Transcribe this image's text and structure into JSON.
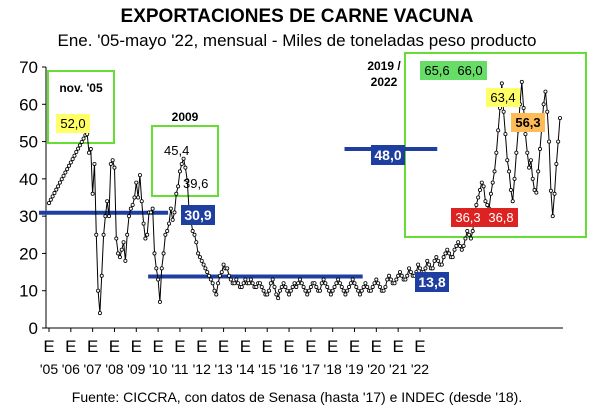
{
  "chart_data": {
    "type": "line",
    "title": "EXPORTACIONES DE CARNE VACUNA",
    "subtitle": "Ene. '05-mayo '22, mensual - Miles de toneladas peso producto",
    "source": "Fuente: CICCRA, con datos de Senasa (hasta '17) e INDEC (desde '18).",
    "xlabel": "",
    "ylabel": "",
    "ylim": [
      0,
      70
    ],
    "yticks": [
      "0",
      "10",
      "20",
      "30",
      "40",
      "50",
      "60",
      "70"
    ],
    "x_tick_top": [
      "E",
      "E",
      "E",
      "E",
      "E",
      "E",
      "E",
      "E",
      "E",
      "E",
      "E",
      "E",
      "E",
      "E",
      "E",
      "E",
      "E",
      "E"
    ],
    "x_tick_bottom": [
      "'05",
      "'06",
      "'07",
      "'08",
      "'09",
      "'10",
      "'11",
      "'12",
      "'13",
      "'14",
      "'15",
      "'16",
      "'17",
      "'18",
      "'19",
      "'20",
      "'21",
      "'22"
    ],
    "grid": false,
    "legend": "none",
    "x_start": "2005-01",
    "x_end": "2022-05",
    "frequency": "monthly",
    "series": [
      {
        "values": [
          33.5,
          34.4,
          35.3,
          36.2,
          37.1,
          38.0,
          39.0,
          39.9,
          40.8,
          41.7,
          42.6,
          43.5,
          44.4,
          45.3,
          46.2,
          47.2,
          48.1,
          49.0,
          49.9,
          50.8,
          51.7,
          52.0,
          47.0,
          48.0,
          36,
          44,
          25,
          10,
          4,
          14,
          25,
          30,
          34,
          30,
          44,
          45,
          43,
          24,
          20,
          19,
          21,
          23,
          18,
          25,
          30,
          32,
          33,
          35,
          39,
          35,
          41,
          34,
          28,
          24,
          25,
          31,
          31,
          32,
          20,
          16,
          13,
          7,
          16,
          20,
          25,
          26,
          28,
          32,
          29,
          31,
          36,
          38,
          42,
          44,
          45.4,
          43,
          39.6,
          32,
          29,
          26,
          25,
          23,
          20,
          19,
          18,
          17,
          16,
          15,
          14,
          13,
          12,
          10,
          9,
          12,
          14,
          15,
          17,
          16,
          16,
          14,
          13,
          12,
          12,
          13,
          12,
          11,
          11,
          12,
          13,
          12,
          12,
          13,
          12,
          11,
          11,
          12,
          12,
          11,
          10,
          9,
          9,
          10,
          12,
          13,
          11,
          9,
          8,
          10,
          11,
          12,
          11,
          10,
          9,
          10,
          11,
          12,
          11,
          12,
          13,
          12,
          11,
          10,
          9,
          10,
          11,
          12,
          12,
          11,
          10,
          10,
          12,
          13,
          12,
          11,
          10,
          9,
          10,
          11,
          12,
          13,
          12,
          11,
          10,
          9,
          10,
          11,
          12,
          13,
          12,
          11,
          10,
          9,
          10,
          11,
          12,
          11,
          10,
          10,
          11,
          12,
          13,
          12,
          11,
          10,
          10,
          11,
          13,
          14,
          13,
          12,
          12,
          13,
          14,
          15,
          14,
          13,
          13,
          14,
          16,
          15,
          14,
          14,
          15,
          17,
          16,
          15,
          15,
          16,
          18,
          17,
          16,
          16,
          18,
          19,
          18,
          17,
          17,
          19,
          20,
          21,
          20,
          19,
          19,
          21,
          22,
          23,
          22,
          21,
          22,
          24,
          26,
          25,
          24,
          26,
          30,
          33,
          35,
          37,
          39,
          38,
          34,
          33,
          32,
          36,
          39,
          42,
          47,
          53,
          59,
          65.6,
          58,
          52,
          45,
          42,
          37,
          34,
          40,
          47,
          53,
          60,
          66.0,
          59,
          52,
          47,
          43,
          45,
          40,
          37,
          36.3,
          42,
          48,
          54,
          60,
          63.4,
          58,
          50,
          36.8,
          30,
          36,
          44,
          50,
          56.3
        ],
        "color": "#000000"
      }
    ],
    "reference_lines": [
      {
        "label": "30,9",
        "value": 30.9,
        "from": "2005-01",
        "to": "2010-01",
        "color": "#1f3fa0"
      },
      {
        "label": "13,8",
        "value": 13.8,
        "from": "2010-01",
        "to": "2018-12",
        "color": "#1f3fa0"
      },
      {
        "label": "48,0",
        "value": 48.0,
        "from": "2019-01",
        "to": "2022-05",
        "color": "#1f3fa0"
      }
    ],
    "annotations": [
      {
        "label": "nov. '05",
        "period": "nov. '05",
        "value": "52,0",
        "value_bg": "#ffff66"
      },
      {
        "label": "2009",
        "period": "2009",
        "values": [
          "45,4",
          "39,6"
        ]
      },
      {
        "label": "2019 / 2022",
        "period": "2019/2022",
        "values": [
          {
            "text": "65,6",
            "bg": "#66dd66"
          },
          {
            "text": "66,0",
            "bg": "#66dd66"
          },
          {
            "text": "63,4",
            "bg": "#ffff66"
          },
          {
            "text": "56,3",
            "bg": "#ffbb55"
          },
          {
            "text": "36,3",
            "bg": "#dd2222"
          },
          {
            "text": "36,8",
            "bg": "#dd2222"
          }
        ]
      }
    ],
    "annotation_box_color": "#66dd33"
  }
}
